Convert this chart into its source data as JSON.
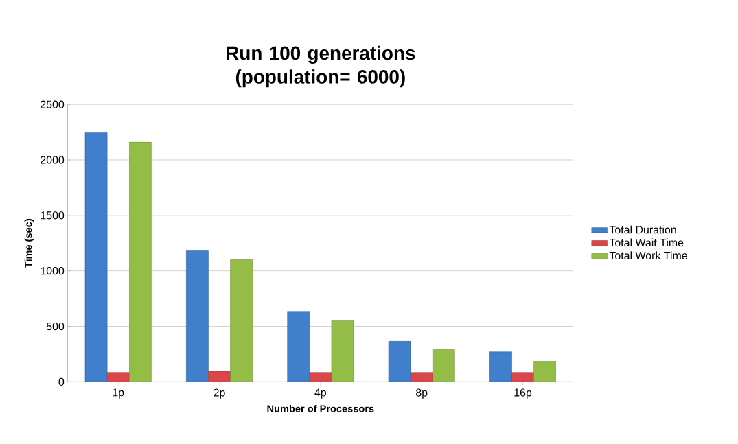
{
  "chart_data": {
    "type": "bar",
    "title": "Run 100 generations (population= 6000)",
    "xlabel": "Number of Processors",
    "ylabel": "Time (sec)",
    "categories": [
      "1p",
      "2p",
      "4p",
      "8p",
      "16p"
    ],
    "series": [
      {
        "name": "Total Duration",
        "color": "#3f7fcc",
        "values": [
          2245,
          1180,
          635,
          365,
          270
        ]
      },
      {
        "name": "Total Wait Time",
        "color": "#d9474a",
        "values": [
          85,
          95,
          85,
          85,
          85
        ]
      },
      {
        "name": "Total Work Time",
        "color": "#94bd47",
        "values": [
          2160,
          1100,
          550,
          290,
          185
        ]
      }
    ],
    "ylim": [
      0,
      2500
    ],
    "yticks": [
      0,
      500,
      1000,
      1500,
      2000,
      2500
    ],
    "grid": "y",
    "legend": "right"
  }
}
